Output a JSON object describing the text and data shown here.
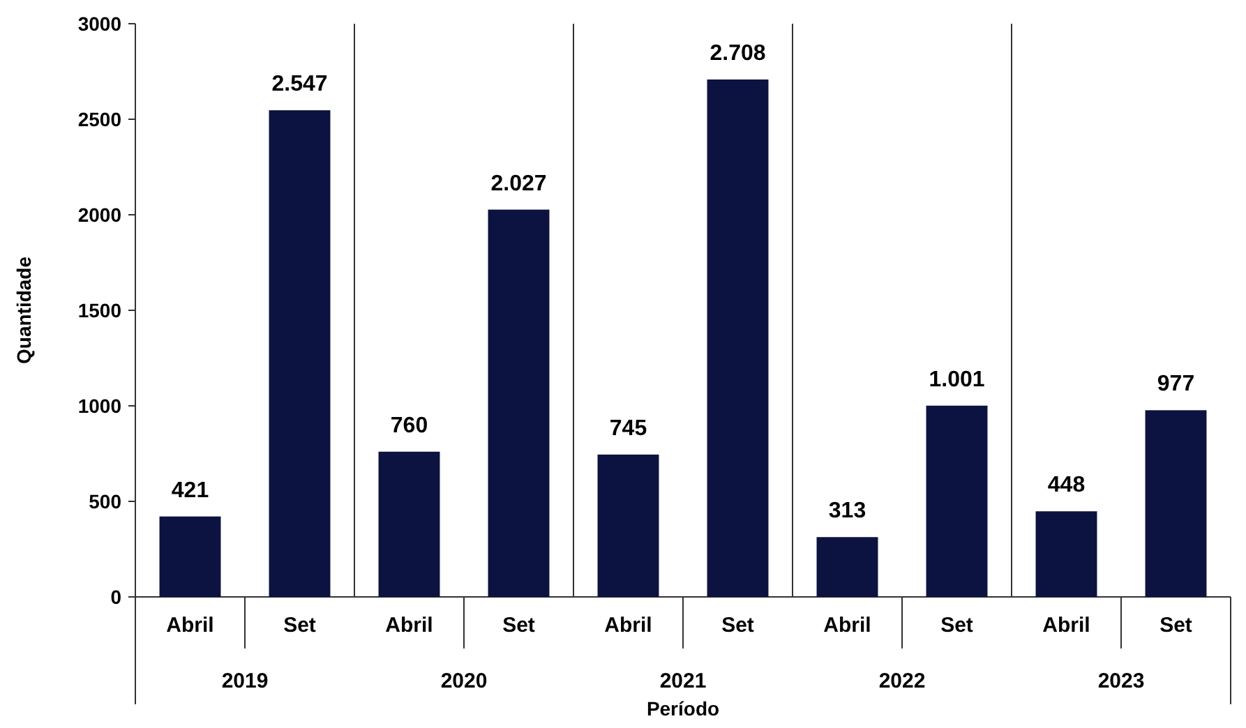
{
  "chart_data": {
    "type": "bar",
    "xlabel": "Período",
    "ylabel": "Quantidade",
    "categories": [
      "Abril",
      "Set",
      "Abril",
      "Set",
      "Abril",
      "Set",
      "Abril",
      "Set",
      "Abril",
      "Set"
    ],
    "values": [
      421,
      2547,
      760,
      2027,
      745,
      2708,
      313,
      1001,
      448,
      977
    ],
    "value_labels": [
      "421",
      "2.547",
      "760",
      "2.027",
      "745",
      "2.708",
      "313",
      "1.001",
      "448",
      "977"
    ],
    "color": "#0c1340",
    "ylim": [
      0,
      3000
    ],
    "yticks": [
      0,
      500,
      1000,
      1500,
      2000,
      2500,
      3000
    ],
    "annotations": [
      "2019",
      "2020",
      "2021",
      "2022",
      "2023"
    ],
    "grid": false
  }
}
